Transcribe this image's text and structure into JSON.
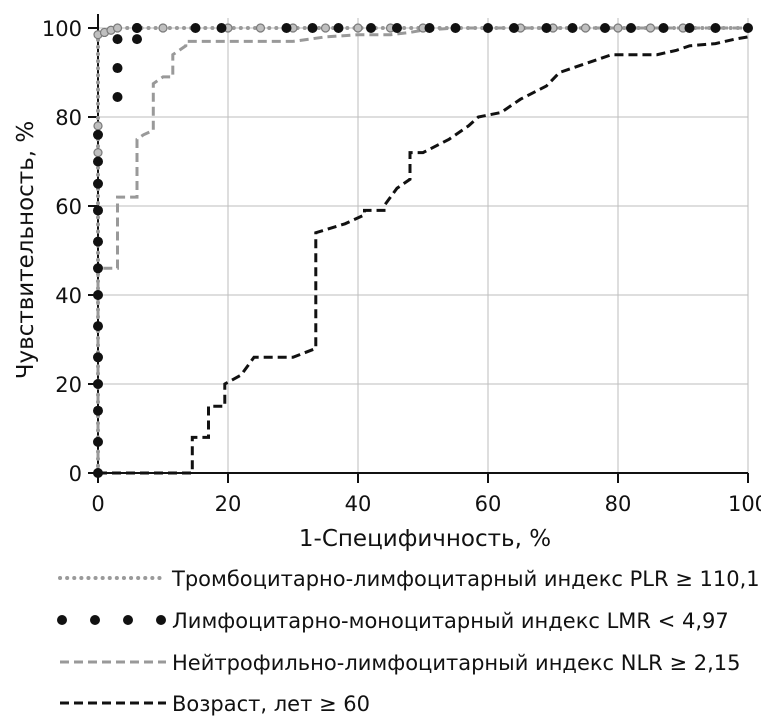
{
  "chart_data": {
    "type": "line",
    "xlabel": "1-Специфичность, %",
    "ylabel": "Чувствительность, %",
    "xlim": [
      0,
      100
    ],
    "ylim": [
      0,
      100
    ],
    "xticks": [
      "0",
      "20",
      "40",
      "60",
      "80",
      "100"
    ],
    "yticks": [
      "0",
      "20",
      "40",
      "60",
      "80",
      "100"
    ],
    "grid": true,
    "legend_placement": "bottom",
    "series": [
      {
        "name": "Тромбоцитарно-лимфоцитарный индекс PLR ≥ 110,15",
        "color": "#9a9a9a",
        "style": "dotted",
        "x": [
          0,
          0,
          0,
          0,
          0,
          0,
          0,
          0,
          0,
          0,
          0,
          0,
          0,
          0,
          1,
          2,
          3,
          6,
          10,
          15,
          20,
          25,
          30,
          35,
          40,
          45,
          50,
          55,
          60,
          65,
          70,
          75,
          80,
          85,
          90,
          95,
          100
        ],
        "y": [
          0,
          7,
          14,
          20,
          26,
          33,
          40,
          46,
          52,
          59,
          65,
          72,
          78,
          98.5,
          99,
          99.5,
          100,
          100,
          100,
          100,
          100,
          100,
          100,
          100,
          100,
          100,
          100,
          100,
          100,
          100,
          100,
          100,
          100,
          100,
          100,
          100,
          100
        ]
      },
      {
        "name": "Лимфоцитарно-моноцитарный индекс LMR < 4,97",
        "color": "#111111",
        "style": "dots",
        "x": [
          0,
          0,
          0,
          0,
          0,
          0,
          0,
          0,
          0,
          0,
          0,
          0,
          0,
          3,
          3,
          3,
          6,
          6,
          6,
          15,
          19,
          29,
          33,
          37,
          42,
          46,
          51,
          55,
          60,
          64,
          69,
          73,
          78,
          82,
          87,
          91,
          95,
          100
        ],
        "y": [
          0,
          7,
          14,
          20,
          26,
          33,
          40,
          46,
          52,
          59,
          65,
          70,
          76,
          84.5,
          91,
          97.5,
          97.5,
          100,
          100,
          100,
          100,
          100,
          100,
          100,
          100,
          100,
          100,
          100,
          100,
          100,
          100,
          100,
          100,
          100,
          100,
          100,
          100,
          100
        ]
      },
      {
        "name": "Нейтрофильно-лимфоцитарный индекс NLR ≥ 2,15",
        "color": "#999999",
        "style": "dashed",
        "x": [
          0,
          0,
          3,
          3,
          4,
          4,
          6,
          6,
          7,
          8.5,
          8.5,
          10,
          11.5,
          11.5,
          13.5,
          13.5,
          14.5,
          15,
          30,
          35,
          40,
          45,
          48,
          50,
          55,
          100
        ],
        "y": [
          0,
          46,
          46,
          62,
          62,
          62,
          62,
          75,
          76,
          77,
          87.5,
          89,
          89,
          94,
          96,
          97,
          97,
          97,
          97,
          98,
          98.5,
          98.5,
          99,
          99.5,
          100,
          100
        ]
      },
      {
        "name": "Возраст, лет ≥ 60",
        "color": "#111111",
        "style": "dashed",
        "x": [
          0,
          14.5,
          14.5,
          17,
          17,
          19.5,
          19.5,
          22,
          24,
          30,
          33.5,
          33.5,
          38,
          41,
          41,
          44,
          44,
          46,
          48,
          48,
          50,
          54,
          57,
          58.5,
          58.5,
          62,
          65,
          69,
          71,
          75,
          79,
          86,
          89,
          91,
          95,
          98,
          100
        ],
        "y": [
          0,
          0,
          8,
          8,
          15,
          15,
          20,
          22,
          26,
          26,
          28,
          54,
          56,
          58,
          59,
          59,
          60,
          64,
          66,
          72,
          72,
          75,
          78,
          80,
          80,
          81,
          84,
          87,
          90,
          92,
          94,
          94,
          95,
          96,
          96.5,
          97.5,
          98
        ]
      }
    ]
  }
}
